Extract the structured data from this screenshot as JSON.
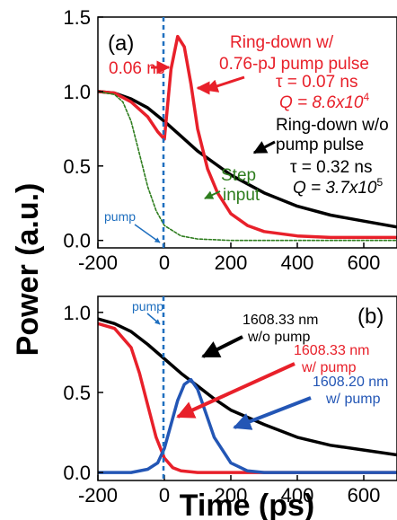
{
  "colors": {
    "black": "#000000",
    "red": "#e8202a",
    "green": "#2e7d1e",
    "blue": "#2356b5",
    "pump": "#1f6fbf"
  },
  "ylabel": "Power (a.u.)",
  "xlabel": "Time (ps)",
  "chart_data": [
    {
      "type": "line",
      "panel_label": "(a)",
      "xlim": [
        -200,
        700
      ],
      "ylim": [
        -0.05,
        1.5
      ],
      "x_ticks": [
        "-200",
        "0",
        "200",
        "400",
        "600"
      ],
      "y_ticks": [
        "0.0",
        "0.5",
        "1.0",
        "1.5"
      ],
      "series": [
        {
          "name": "Ring-down w/o pump pulse",
          "color": "#000000",
          "x": [
            -200,
            -150,
            -100,
            -50,
            0,
            50,
            100,
            150,
            200,
            300,
            400,
            500,
            600,
            700
          ],
          "y": [
            1.0,
            0.99,
            0.95,
            0.89,
            0.8,
            0.7,
            0.6,
            0.52,
            0.44,
            0.32,
            0.23,
            0.17,
            0.13,
            0.09
          ]
        },
        {
          "name": "Ring-down w/ 0.76-pJ pump pulse",
          "color": "#e8202a",
          "x": [
            -200,
            -150,
            -100,
            -50,
            -20,
            0,
            20,
            40,
            60,
            80,
            100,
            130,
            160,
            200,
            250,
            300,
            400,
            500,
            600,
            700
          ],
          "y": [
            1.0,
            0.99,
            0.93,
            0.83,
            0.73,
            0.68,
            1.15,
            1.37,
            1.3,
            1.05,
            0.75,
            0.48,
            0.32,
            0.18,
            0.1,
            0.06,
            0.03,
            0.02,
            0.02,
            0.02
          ]
        },
        {
          "name": "Step input",
          "color": "#2e7d1e",
          "x": [
            -200,
            -150,
            -125,
            -100,
            -75,
            -50,
            -25,
            0,
            50,
            100,
            200,
            400,
            700
          ],
          "y": [
            1.0,
            0.98,
            0.93,
            0.8,
            0.58,
            0.36,
            0.2,
            0.1,
            0.03,
            0.01,
            0.0,
            0.0,
            0.0
          ]
        }
      ],
      "annotations": {
        "red_title_1": "Ring-down w/",
        "red_title_2": "0.76-pJ  pump pulse",
        "red_tau": "τ = 0.07 ns",
        "red_q": "Q = 8.6x10",
        "red_q_exp": "4",
        "width": "0.06 ns",
        "black_title_1": "Ring-down w/o",
        "black_title_2": "pump pulse",
        "black_tau": "τ = 0.32 ns",
        "black_q": "Q = 3.7x10",
        "black_q_exp": "5",
        "step_1": "Step",
        "step_2": "input",
        "pump": "pump"
      }
    },
    {
      "type": "line",
      "panel_label": "(b)",
      "xlim": [
        -200,
        700
      ],
      "ylim": [
        -0.05,
        1.1
      ],
      "x_ticks": [
        "-200",
        "0",
        "200",
        "400",
        "600"
      ],
      "y_ticks": [
        "0.0",
        "0.5",
        "1.0"
      ],
      "series": [
        {
          "name": "1608.33 nm w/o pump",
          "color": "#000000",
          "x": [
            -200,
            -150,
            -100,
            -50,
            0,
            50,
            100,
            150,
            200,
            300,
            400,
            500,
            600,
            700
          ],
          "y": [
            0.96,
            0.93,
            0.88,
            0.8,
            0.71,
            0.62,
            0.54,
            0.46,
            0.39,
            0.3,
            0.22,
            0.17,
            0.14,
            0.11
          ]
        },
        {
          "name": "1608.33 nm w/ pump",
          "color": "#e8202a",
          "x": [
            -200,
            -150,
            -100,
            -75,
            -50,
            -25,
            0,
            25,
            50,
            100,
            200,
            400,
            700
          ],
          "y": [
            0.93,
            0.9,
            0.78,
            0.62,
            0.42,
            0.22,
            0.09,
            0.03,
            0.01,
            0.0,
            0.0,
            0.0,
            0.0
          ]
        },
        {
          "name": "1608.20 nm w/ pump",
          "color": "#2356b5",
          "x": [
            -200,
            -100,
            -50,
            -20,
            0,
            20,
            40,
            60,
            80,
            100,
            120,
            150,
            200,
            250,
            300,
            400,
            700
          ],
          "y": [
            0.0,
            0.0,
            0.02,
            0.06,
            0.15,
            0.3,
            0.45,
            0.55,
            0.58,
            0.52,
            0.4,
            0.22,
            0.06,
            0.01,
            0.0,
            0.0,
            0.0
          ]
        }
      ],
      "annotations": {
        "pump": "pump",
        "black_1": "1608.33 nm",
        "black_2": "w/o pump",
        "red_1": "1608.33 nm",
        "red_2": "w/ pump",
        "blue_1": "1608.20 nm",
        "blue_2": "w/ pump"
      }
    }
  ]
}
